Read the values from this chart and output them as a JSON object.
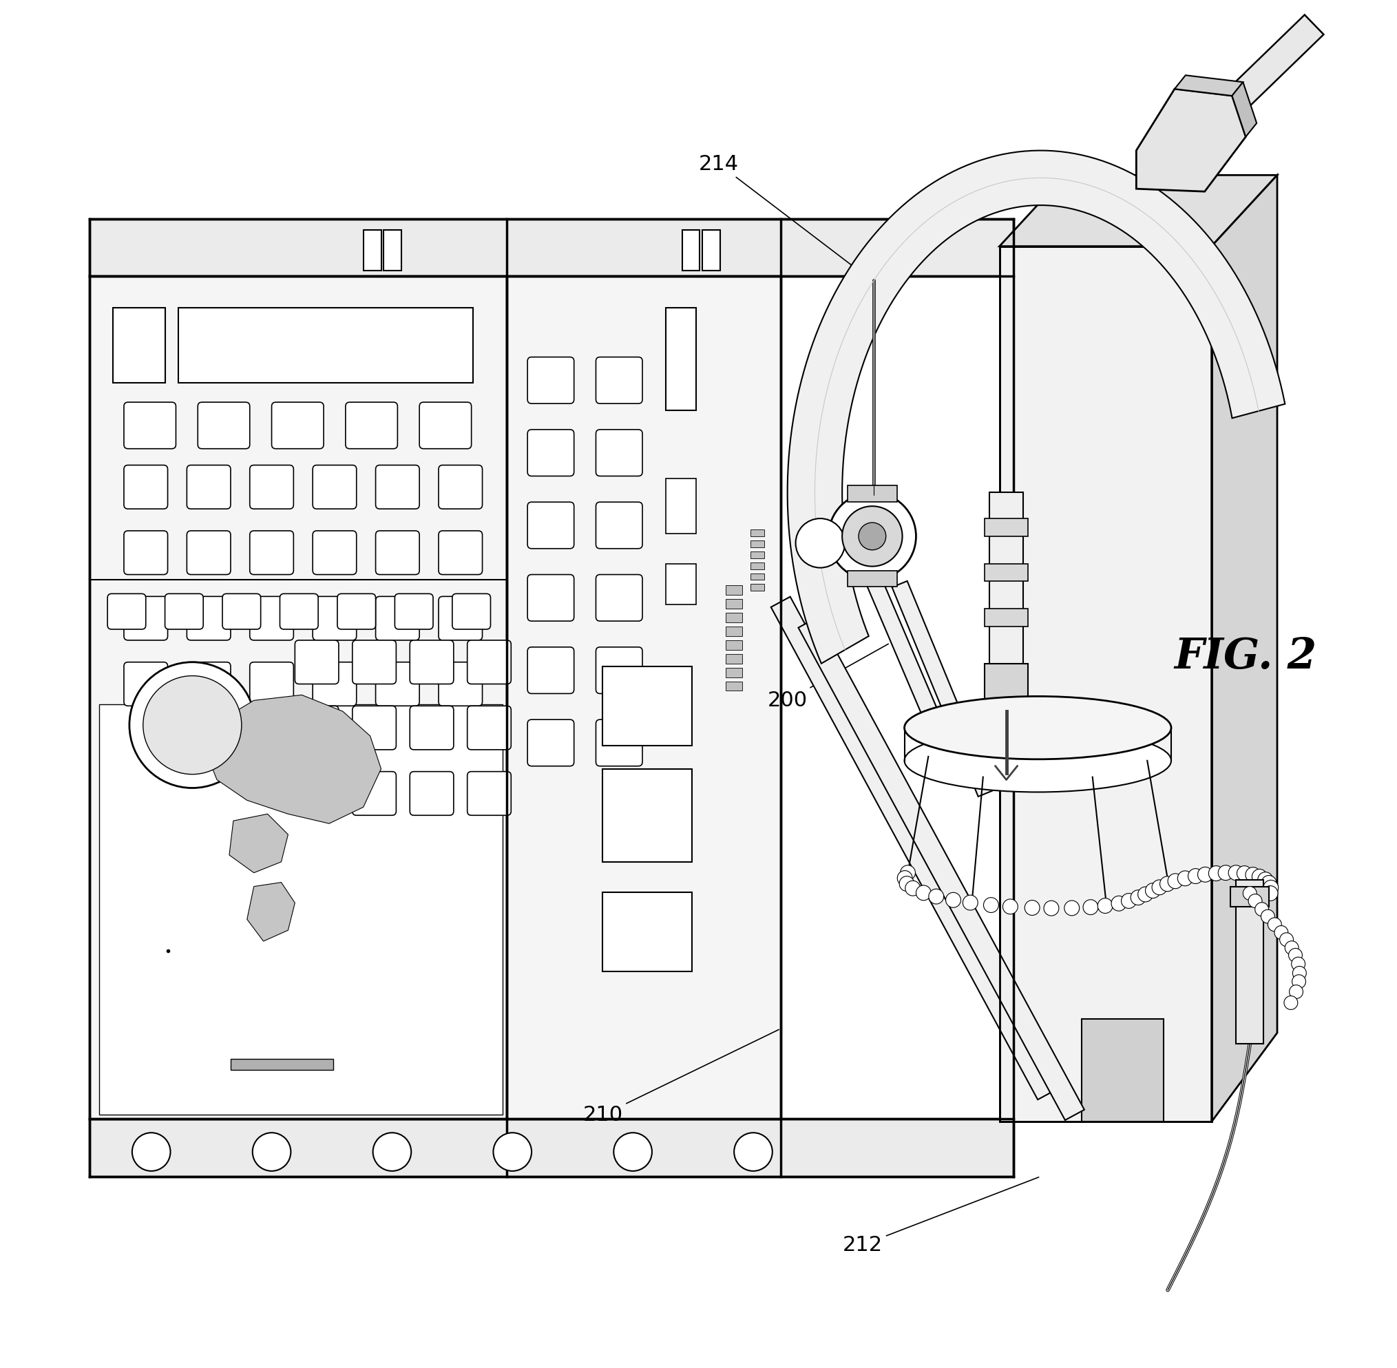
{
  "background_color": "#ffffff",
  "line_color": "#000000",
  "fig_label": "FIG. 2",
  "fig_label_fontsize": 44,
  "ref_fontsize": 22,
  "labels": {
    "200": {
      "text": [
        0.565,
        0.488
      ],
      "arrow": [
        0.64,
        0.53
      ]
    },
    "210": {
      "text": [
        0.43,
        0.185
      ],
      "arrow": [
        0.56,
        0.248
      ]
    },
    "212": {
      "text": [
        0.62,
        0.09
      ],
      "arrow": [
        0.75,
        0.14
      ]
    },
    "214": {
      "text": [
        0.515,
        0.88
      ],
      "arrow": [
        0.62,
        0.8
      ]
    }
  }
}
